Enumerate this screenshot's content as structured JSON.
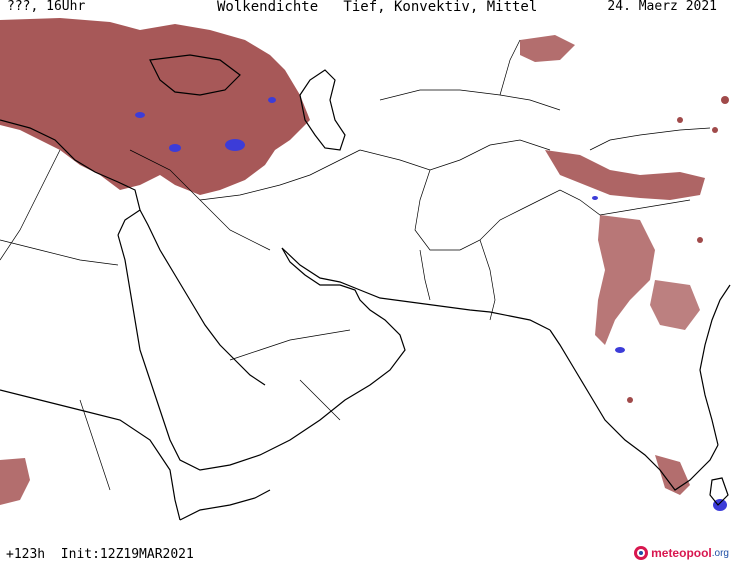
{
  "header": {
    "left": "???, 16Uhr",
    "title": "Wolkendichte   Tief, Konvektiv, Mittel",
    "date": "24. Maerz 2021"
  },
  "footer": {
    "forecast": "+123h  Init:12Z19MAR2021"
  },
  "logo": {
    "brand": "meteopool",
    "suffix": ".org"
  },
  "colors": {
    "cloud_low": "#a04a4a",
    "cloud_dense": "#3c3cd8",
    "border": "#000000",
    "background": "#ffffff"
  }
}
